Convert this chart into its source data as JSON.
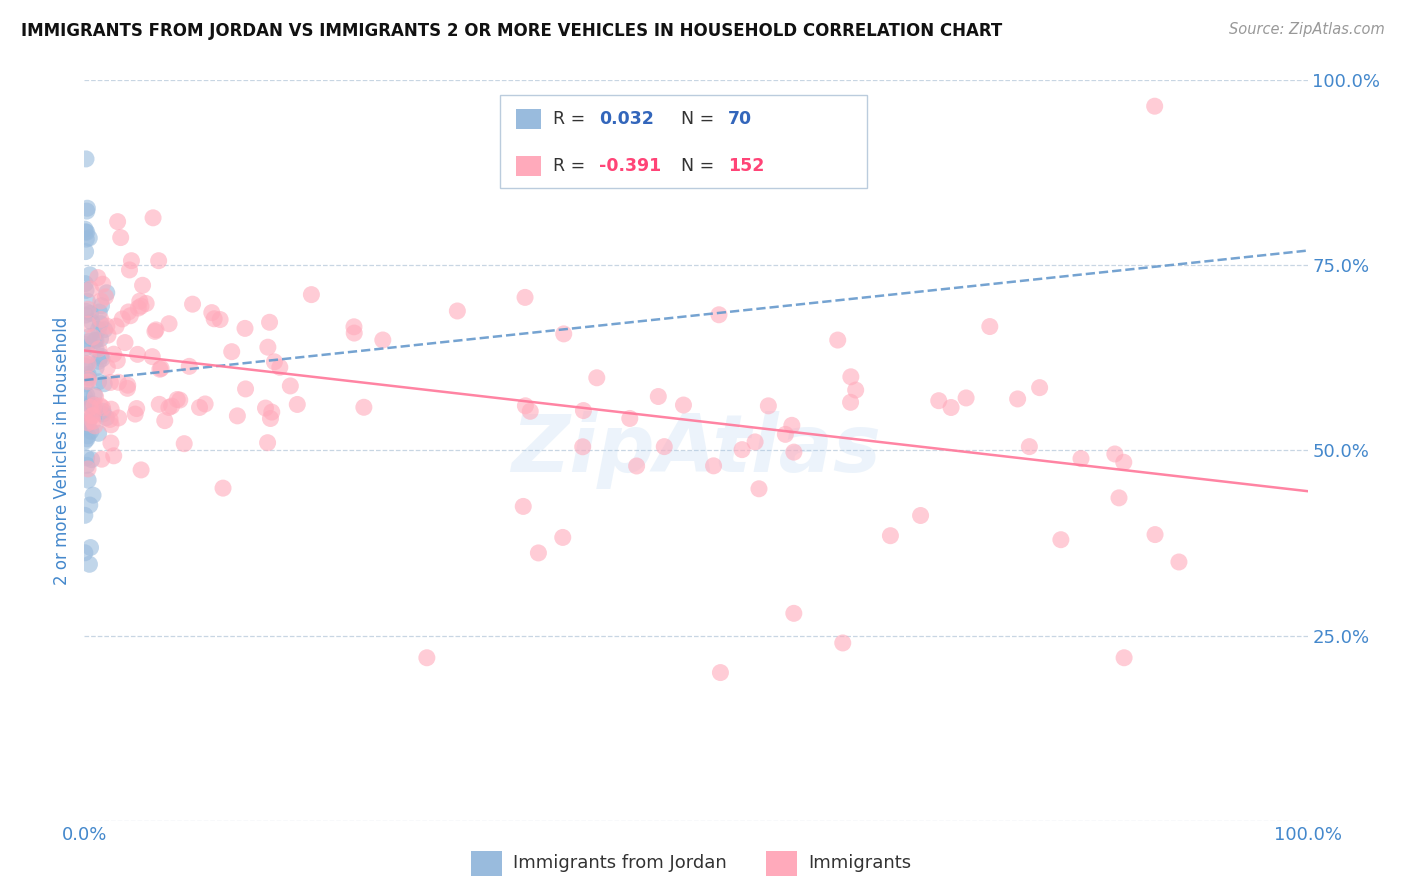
{
  "title": "IMMIGRANTS FROM JORDAN VS IMMIGRANTS 2 OR MORE VEHICLES IN HOUSEHOLD CORRELATION CHART",
  "source": "Source: ZipAtlas.com",
  "ylabel": "2 or more Vehicles in Household",
  "legend_label1": "Immigrants from Jordan",
  "legend_label2": "Immigrants",
  "R1": 0.032,
  "N1": 70,
  "R2": -0.391,
  "N2": 152,
  "color_blue": "#99BBDD",
  "color_pink": "#FFAABB",
  "color_blue_line": "#6699CC",
  "color_pink_line": "#FF7799",
  "color_blue_text": "#3366BB",
  "color_pink_text": "#FF4477",
  "color_axis": "#4488CC",
  "watermark_color": "#AACCEE",
  "grid_color": "#BBCCDD",
  "xlim": [
    0,
    1.0
  ],
  "ylim": [
    0,
    1.0
  ],
  "x_ticks": [
    0.0,
    1.0
  ],
  "y_ticks": [
    0.0,
    0.25,
    0.5,
    0.75,
    1.0
  ],
  "x_tick_labels": [
    "0.0%",
    "100.0%"
  ],
  "y_tick_labels_right": [
    "",
    "25.0%",
    "50.0%",
    "75.0%",
    "100.0%"
  ],
  "scatter_size": 150,
  "scatter_alpha": 0.6,
  "blue_trend_x": [
    0.0,
    1.0
  ],
  "blue_trend_y": [
    0.595,
    0.77
  ],
  "pink_trend_x": [
    0.0,
    1.0
  ],
  "pink_trend_y": [
    0.635,
    0.445
  ]
}
